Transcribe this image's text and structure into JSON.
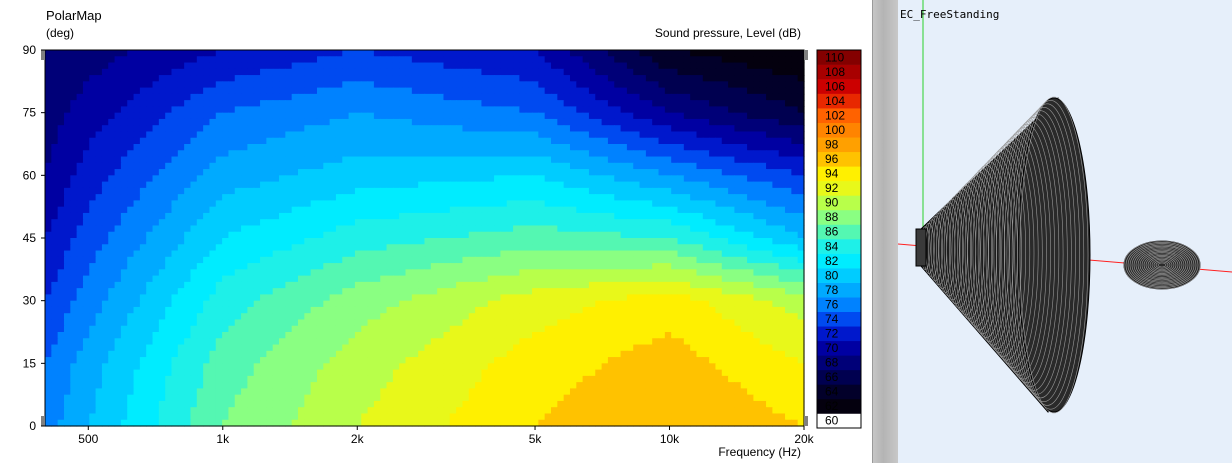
{
  "colors": {
    "background": "#ffffff",
    "view3d_background": "#e6effa",
    "contour_line": "#000000"
  },
  "chart_data": {
    "type": "heatmap",
    "title": "PolarMap",
    "ylabel": "(deg)",
    "xlabel": "Frequency  (Hz)",
    "colorbar_label": "Sound pressure, Level  (dB)",
    "x_scale": "log",
    "xlim": [
      400,
      20000
    ],
    "ylim": [
      0,
      90
    ],
    "x_ticks": [
      {
        "value": 500,
        "label": "500"
      },
      {
        "value": 1000,
        "label": "1k"
      },
      {
        "value": 2000,
        "label": "2k"
      },
      {
        "value": 5000,
        "label": "5k"
      },
      {
        "value": 10000,
        "label": "10k"
      },
      {
        "value": 20000,
        "label": "20k"
      }
    ],
    "y_ticks": [
      {
        "value": 0,
        "label": "0"
      },
      {
        "value": 15,
        "label": "15"
      },
      {
        "value": 30,
        "label": "30"
      },
      {
        "value": 45,
        "label": "45"
      },
      {
        "value": 60,
        "label": "60"
      },
      {
        "value": 75,
        "label": "75"
      },
      {
        "value": 90,
        "label": "90"
      }
    ],
    "colorbar": {
      "levels": [
        60,
        62,
        64,
        66,
        68,
        70,
        72,
        74,
        76,
        78,
        80,
        82,
        84,
        86,
        88,
        90,
        92,
        94,
        96,
        98,
        100,
        102,
        104,
        106,
        108,
        110
      ],
      "labels": [
        "60",
        "62",
        "64",
        "66",
        "68",
        "70",
        "72",
        "74",
        "76",
        "78",
        "80",
        "82",
        "84",
        "86",
        "88",
        "90",
        "92",
        "94",
        "96",
        "98",
        "100",
        "102",
        "104",
        "106",
        "108",
        "110"
      ],
      "colors": [
        "#ffffff",
        "#04000e",
        "#02002a",
        "#000050",
        "#000078",
        "#0000a2",
        "#0018cc",
        "#004af0",
        "#0082ff",
        "#00aaff",
        "#00ccff",
        "#00ecff",
        "#1ef0e8",
        "#54f7b2",
        "#8aff82",
        "#b8ff4a",
        "#e8f81a",
        "#fff000",
        "#ffc200",
        "#ffa000",
        "#ff8400",
        "#ff6200",
        "#e82800",
        "#cc0000",
        "#a80000",
        "#840000"
      ]
    },
    "frequencies_hz": [
      400,
      500,
      1000,
      2000,
      5000,
      10000,
      20000
    ],
    "angles_deg": [
      0,
      15,
      30,
      45,
      60,
      75,
      90
    ],
    "level_db": [
      [
        77,
        80,
        88,
        92,
        96,
        98,
        96
      ],
      [
        76,
        79,
        87,
        91,
        95,
        97,
        94
      ],
      [
        74,
        77,
        85,
        89,
        93,
        95,
        91
      ],
      [
        72,
        75,
        82,
        85,
        87,
        86,
        80
      ],
      [
        70,
        73,
        79,
        81,
        82,
        78,
        74
      ],
      [
        69,
        71,
        76,
        78,
        76,
        70,
        66
      ],
      [
        68,
        69,
        72,
        74,
        72,
        64,
        62
      ]
    ]
  },
  "view3d": {
    "title": "EC_FreeStanding"
  }
}
